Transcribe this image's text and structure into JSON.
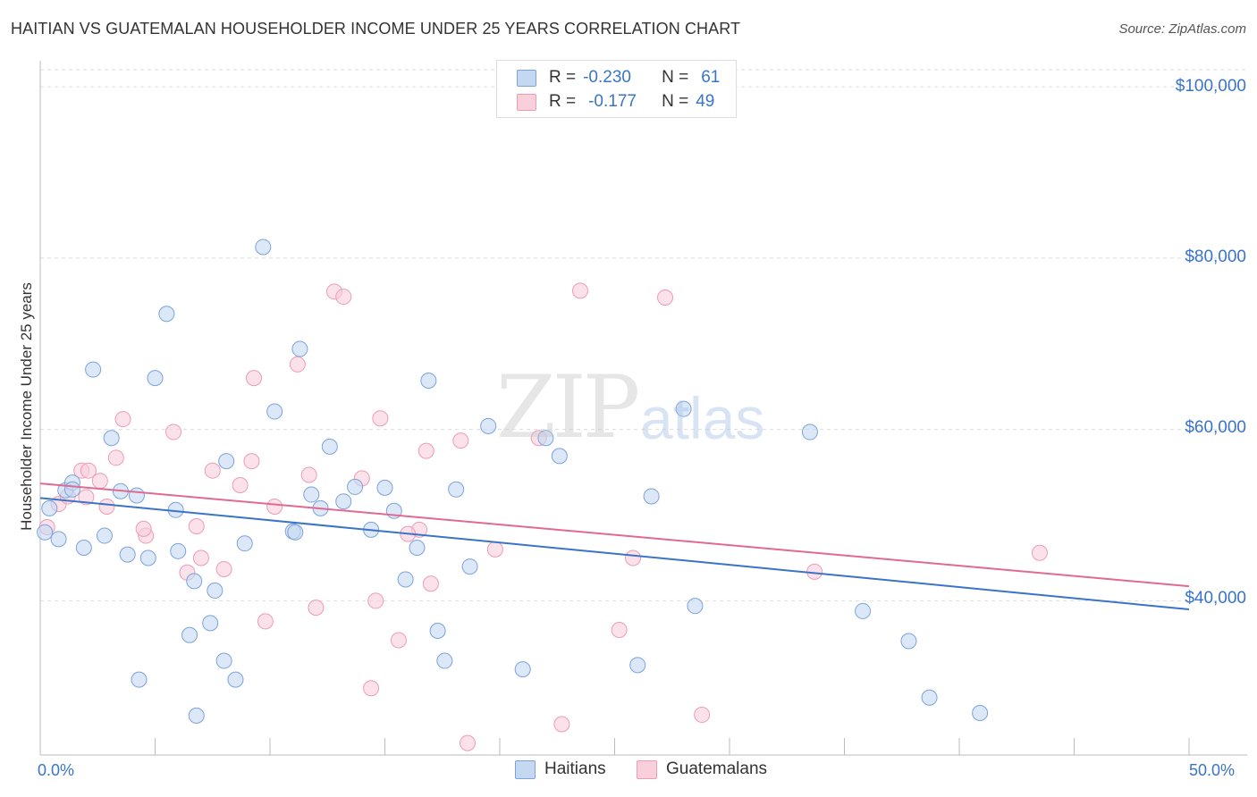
{
  "title": "HAITIAN VS GUATEMALAN HOUSEHOLDER INCOME UNDER 25 YEARS CORRELATION CHART",
  "source": "Source: ZipAtlas.com",
  "watermark": {
    "zip": "ZIP",
    "atlas": "atlas"
  },
  "legend": {
    "haitians": {
      "r_label": "R =",
      "r_value": "-0.230",
      "n_label": "N =",
      "n_value": "61"
    },
    "guatemalans": {
      "r_label": "R =",
      "r_value": "-0.177",
      "n_label": "N =",
      "n_value": "49"
    }
  },
  "colors": {
    "haitians_fill": "#c5d8f2",
    "haitians_stroke": "#7aa3dc",
    "haitians_line": "#3a74c8",
    "guatemalans_fill": "#f9cfdc",
    "guatemalans_stroke": "#ee9bb5",
    "guatemalans_line": "#e06a91",
    "tick_text": "#3a74c8",
    "grid": "#dddddd"
  },
  "chart_data": {
    "type": "scatter",
    "title": "HAITIAN VS GUATEMALAN HOUSEHOLDER INCOME UNDER 25 YEARS CORRELATION CHART",
    "xlabel": "",
    "ylabel": "Householder Income Under 25 years",
    "xlim": [
      0,
      50
    ],
    "ylim": [
      22000,
      102000
    ],
    "x_tick_labels": [
      "0.0%",
      "50.0%"
    ],
    "y_ticks": [
      40000,
      60000,
      80000,
      100000
    ],
    "y_tick_labels": [
      "$40,000",
      "$60,000",
      "$80,000",
      "$100,000"
    ],
    "grid": true,
    "legend_position": "top-center",
    "series": [
      {
        "name": "Haitians",
        "r": -0.23,
        "n": 61,
        "trend": {
          "x": [
            0,
            50
          ],
          "y": [
            52000,
            39000
          ]
        },
        "points": [
          [
            0.2,
            48000
          ],
          [
            0.4,
            50800
          ],
          [
            0.8,
            47200
          ],
          [
            1.1,
            52900
          ],
          [
            1.4,
            53800
          ],
          [
            1.9,
            46200
          ],
          [
            2.3,
            67000
          ],
          [
            2.8,
            47600
          ],
          [
            3.1,
            59000
          ],
          [
            3.5,
            52800
          ],
          [
            4.2,
            52300
          ],
          [
            4.3,
            30800
          ],
          [
            4.7,
            45000
          ],
          [
            5.0,
            66000
          ],
          [
            5.9,
            50600
          ],
          [
            6.0,
            45800
          ],
          [
            6.5,
            36000
          ],
          [
            6.8,
            26600
          ],
          [
            7.4,
            37400
          ],
          [
            7.6,
            41200
          ],
          [
            8.0,
            33000
          ],
          [
            8.1,
            56300
          ],
          [
            8.5,
            30800
          ],
          [
            8.9,
            46700
          ],
          [
            9.7,
            81300
          ],
          [
            10.2,
            62100
          ],
          [
            11.0,
            48100
          ],
          [
            11.3,
            69400
          ],
          [
            11.8,
            52400
          ],
          [
            12.2,
            50800
          ],
          [
            12.6,
            58000
          ],
          [
            13.2,
            51600
          ],
          [
            13.7,
            53300
          ],
          [
            14.4,
            48300
          ],
          [
            15.0,
            53200
          ],
          [
            15.4,
            50500
          ],
          [
            15.9,
            42500
          ],
          [
            16.4,
            46200
          ],
          [
            16.9,
            65700
          ],
          [
            17.3,
            36500
          ],
          [
            17.6,
            33000
          ],
          [
            18.1,
            53000
          ],
          [
            18.7,
            44000
          ],
          [
            19.5,
            60400
          ],
          [
            21.0,
            32000
          ],
          [
            22.0,
            59000
          ],
          [
            22.6,
            56900
          ],
          [
            26.0,
            32500
          ],
          [
            26.6,
            52200
          ],
          [
            28.0,
            62400
          ],
          [
            28.5,
            39400
          ],
          [
            33.5,
            59700
          ],
          [
            35.8,
            38800
          ],
          [
            37.8,
            35300
          ],
          [
            38.7,
            28700
          ],
          [
            40.9,
            26900
          ],
          [
            1.4,
            53000
          ],
          [
            3.8,
            45400
          ],
          [
            5.5,
            73500
          ],
          [
            6.7,
            42300
          ],
          [
            11.1,
            48000
          ]
        ]
      },
      {
        "name": "Guatemalans",
        "r": -0.177,
        "n": 49,
        "trend": {
          "x": [
            0,
            50
          ],
          "y": [
            53700,
            41700
          ]
        },
        "points": [
          [
            0.3,
            48600
          ],
          [
            0.8,
            51300
          ],
          [
            1.2,
            52200
          ],
          [
            1.8,
            55200
          ],
          [
            2.1,
            55200
          ],
          [
            2.6,
            54000
          ],
          [
            2.9,
            51000
          ],
          [
            3.3,
            56700
          ],
          [
            3.6,
            61200
          ],
          [
            4.6,
            47600
          ],
          [
            5.8,
            59700
          ],
          [
            6.4,
            43300
          ],
          [
            6.8,
            48700
          ],
          [
            7.5,
            55200
          ],
          [
            8.0,
            43700
          ],
          [
            8.7,
            53500
          ],
          [
            9.2,
            56300
          ],
          [
            9.3,
            66000
          ],
          [
            9.8,
            37600
          ],
          [
            10.2,
            51000
          ],
          [
            11.2,
            67600
          ],
          [
            11.7,
            54700
          ],
          [
            12.0,
            39200
          ],
          [
            12.8,
            76100
          ],
          [
            13.2,
            75500
          ],
          [
            14.0,
            54300
          ],
          [
            14.4,
            29800
          ],
          [
            14.6,
            40000
          ],
          [
            14.8,
            61300
          ],
          [
            15.6,
            35400
          ],
          [
            16.5,
            48300
          ],
          [
            16.8,
            57500
          ],
          [
            17.0,
            42000
          ],
          [
            18.3,
            58700
          ],
          [
            18.6,
            23400
          ],
          [
            19.8,
            46000
          ],
          [
            21.7,
            59000
          ],
          [
            22.7,
            25600
          ],
          [
            23.5,
            76200
          ],
          [
            25.2,
            36600
          ],
          [
            25.8,
            45000
          ],
          [
            27.2,
            75400
          ],
          [
            28.8,
            26700
          ],
          [
            33.7,
            43400
          ],
          [
            43.5,
            45600
          ],
          [
            4.5,
            48400
          ],
          [
            7.0,
            45000
          ],
          [
            16.0,
            47800
          ],
          [
            2.0,
            52100
          ]
        ]
      }
    ]
  }
}
